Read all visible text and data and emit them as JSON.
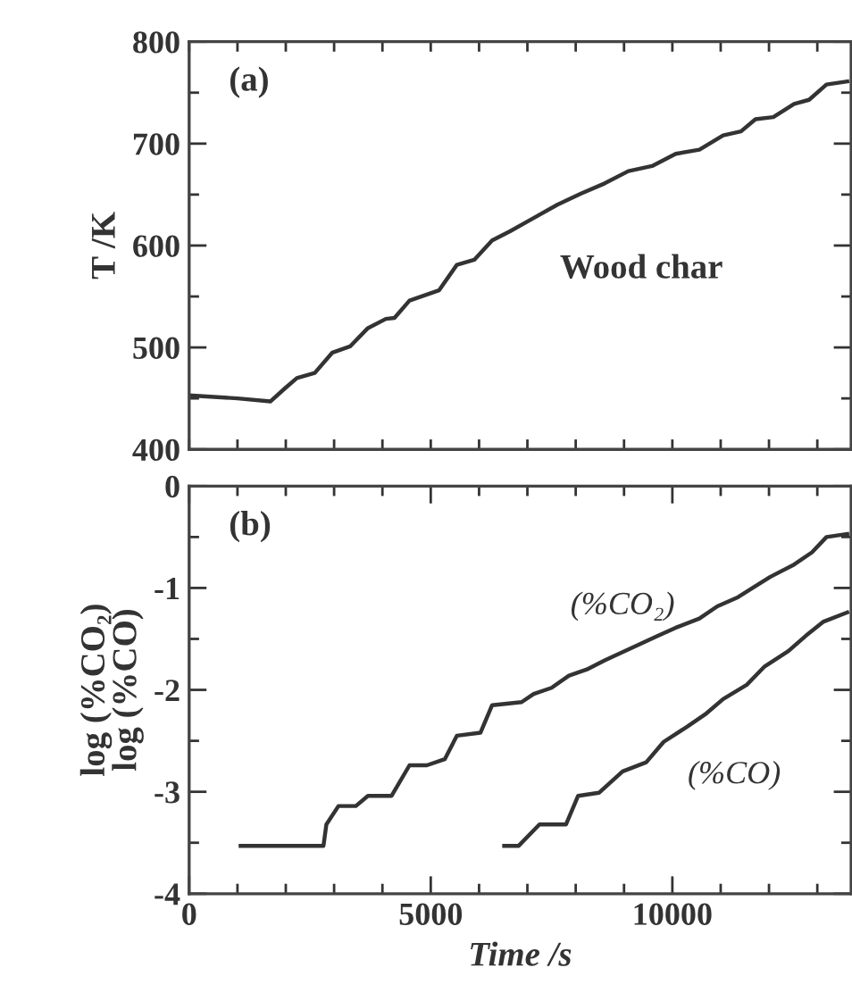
{
  "chart_data": [
    {
      "type": "line",
      "ylabel": "T /K",
      "annotations": [
        "(a)",
        "Wood char"
      ],
      "tick_labels": "y",
      "grid": false,
      "xlim": [
        0,
        13700
      ],
      "xticks": [
        {
          "value": 0,
          "label": null
        },
        {
          "value": 1000,
          "label": null
        },
        {
          "value": 2000,
          "label": null
        },
        {
          "value": 3000,
          "label": null
        },
        {
          "value": 4000,
          "label": null
        },
        {
          "value": 5000,
          "label": null
        },
        {
          "value": 6000,
          "label": null
        },
        {
          "value": 7000,
          "label": null
        },
        {
          "value": 8000,
          "label": null
        },
        {
          "value": 9000,
          "label": null
        },
        {
          "value": 10000,
          "label": null
        },
        {
          "value": 11000,
          "label": null
        },
        {
          "value": 12000,
          "label": null
        },
        {
          "value": 13000,
          "label": null
        }
      ],
      "ylim": [
        400,
        800
      ],
      "yticks": [
        400,
        {
          "value": 450,
          "label": null
        },
        500,
        {
          "value": 550,
          "label": null
        },
        600,
        {
          "value": 650,
          "label": null
        },
        700,
        {
          "value": 750,
          "label": null
        },
        800
      ],
      "series": [
        {
          "color": "#333333",
          "x": [
            0,
            1000,
            1680,
            1985,
            2230,
            2600,
            2965,
            3330,
            3700,
            4070,
            4250,
            4560,
            5170,
            5540,
            5900,
            6270,
            6640,
            7130,
            7620,
            8110,
            8600,
            9090,
            9580,
            10070,
            10560,
            11050,
            11420,
            11720,
            12090,
            12520,
            12830,
            13190,
            13620
          ],
          "values": [
            453,
            450,
            447,
            460,
            470,
            475,
            495,
            501,
            519,
            528,
            529,
            546,
            556,
            581,
            586,
            605,
            614,
            627,
            640,
            651,
            661,
            673,
            678,
            690,
            694,
            708,
            712,
            724,
            726,
            739,
            743,
            758,
            761
          ]
        }
      ]
    },
    {
      "type": "line",
      "xlabel": "Time /s",
      "ylabel": "log (%CO₂)\nlog (%CO)",
      "annotations": [
        "(b)"
      ],
      "grid": false,
      "xlim": [
        0,
        13700
      ],
      "xticks": [
        0,
        {
          "value": 1000,
          "label": null
        },
        {
          "value": 2000,
          "label": null
        },
        {
          "value": 3000,
          "label": null
        },
        {
          "value": 4000,
          "label": null
        },
        5000,
        {
          "value": 6000,
          "label": null
        },
        {
          "value": 7000,
          "label": null
        },
        {
          "value": 8000,
          "label": null
        },
        {
          "value": 9000,
          "label": null
        },
        10000,
        {
          "value": 11000,
          "label": null
        },
        {
          "value": 12000,
          "label": null
        },
        {
          "value": 13000,
          "label": null
        }
      ],
      "ylim": [
        -4,
        0
      ],
      "yticks": [
        {
          "value": -4,
          "label": "-4"
        },
        {
          "value": -3.5,
          "label": null
        },
        {
          "value": -3,
          "label": "-3"
        },
        {
          "value": -2.5,
          "label": null
        },
        {
          "value": -2,
          "label": "-2"
        },
        {
          "value": -1.5,
          "label": null
        },
        {
          "value": -1,
          "label": "-1"
        },
        {
          "value": -0.5,
          "label": null
        },
        0
      ],
      "series": [
        {
          "name": "(%CO₂)",
          "color": "#333333",
          "x": [
            1065,
            2780,
            2840,
            3090,
            3450,
            3700,
            4190,
            4560,
            4920,
            5290,
            5540,
            6030,
            6270,
            6880,
            7130,
            7500,
            7860,
            8230,
            8600,
            8970,
            9330,
            9700,
            10070,
            10560,
            10930,
            11360,
            11660,
            12030,
            12520,
            12890,
            13190,
            13620
          ],
          "values": [
            -3.53,
            -3.53,
            -3.32,
            -3.14,
            -3.14,
            -3.04,
            -3.04,
            -2.74,
            -2.74,
            -2.68,
            -2.45,
            -2.42,
            -2.15,
            -2.12,
            -2.04,
            -1.98,
            -1.86,
            -1.8,
            -1.71,
            -1.63,
            -1.55,
            -1.47,
            -1.39,
            -1.3,
            -1.18,
            -1.09,
            -1.0,
            -0.89,
            -0.77,
            -0.65,
            -0.5,
            -0.47
          ]
        },
        {
          "name": "(%CO)",
          "color": "#333333",
          "x": [
            6520,
            6820,
            7250,
            7800,
            8050,
            8480,
            8970,
            9460,
            9820,
            10310,
            10680,
            11050,
            11540,
            11910,
            12400,
            12760,
            13130,
            13620
          ],
          "values": [
            -3.53,
            -3.53,
            -3.32,
            -3.32,
            -3.04,
            -3.01,
            -2.8,
            -2.71,
            -2.51,
            -2.36,
            -2.24,
            -2.09,
            -1.95,
            -1.77,
            -1.62,
            -1.47,
            -1.33,
            -1.24
          ]
        }
      ]
    }
  ]
}
